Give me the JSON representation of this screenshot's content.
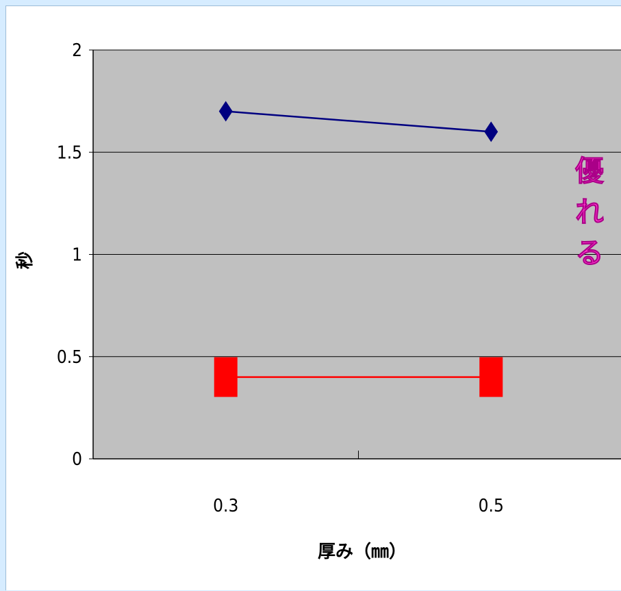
{
  "chart_data": {
    "type": "line",
    "categories": [
      "0.3",
      "0.5"
    ],
    "series": [
      {
        "values": [
          1.7,
          1.6
        ],
        "color": "#000080",
        "marker": "diamond"
      },
      {
        "values": [
          0.4,
          0.4
        ],
        "color": "#ff0000",
        "marker": "square"
      }
    ],
    "xlabel": "厚み（㎜）",
    "ylabel": "秒",
    "ylim": [
      0,
      2
    ],
    "yticks": [
      "0",
      "0.5",
      "1",
      "1.5",
      "2"
    ],
    "grid": true,
    "plot_background": "#c0c0c0",
    "annotation": "優れる"
  }
}
